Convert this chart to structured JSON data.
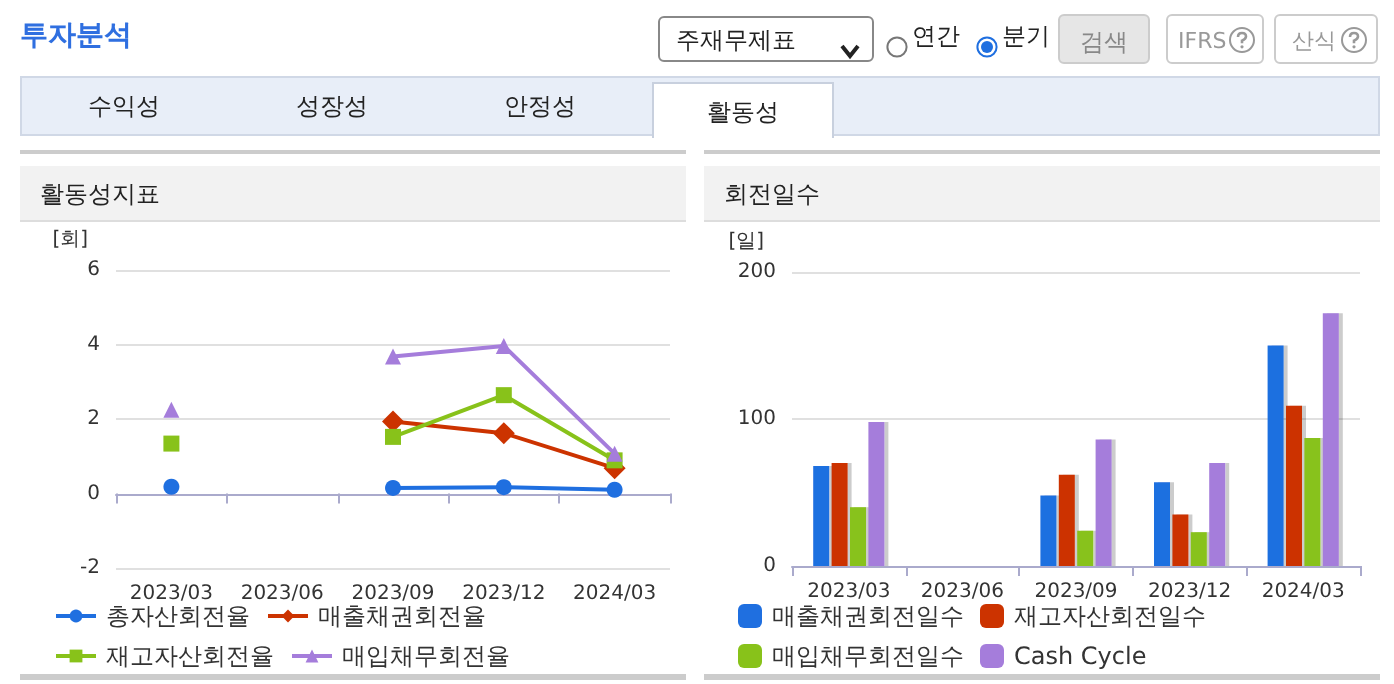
{
  "chart_data": [
    {
      "type": "line",
      "title": "활동성지표",
      "ylabel": "[회]",
      "annotations": [
        "투자분석",
        "주재무제표",
        "연간",
        "분기",
        "검색",
        "IFRS",
        "산식",
        "수익성",
        "성장성",
        "안정성",
        "활동성"
      ],
      "categories": [
        "2023/03",
        "2023/06",
        "2023/09",
        "2023/12",
        "2024/03"
      ],
      "series": [
        {
          "name": "총자산회전율",
          "color": "#1f6fe0",
          "marker": "circle",
          "values": [
            0.18,
            null,
            0.15,
            0.17,
            0.1
          ]
        },
        {
          "name": "매출채권회전율",
          "color": "#cc3300",
          "marker": "diamond",
          "values": [
            null,
            null,
            1.93,
            1.62,
            0.68
          ]
        },
        {
          "name": "재고자산회전율",
          "color": "#88c21a",
          "marker": "square",
          "values": [
            1.34,
            null,
            1.52,
            2.64,
            0.89
          ]
        },
        {
          "name": "매입채무회전율",
          "color": "#a57ddb",
          "marker": "triangle",
          "values": [
            2.25,
            null,
            3.68,
            3.96,
            1.07
          ]
        }
      ],
      "ylim": [
        -2,
        6
      ],
      "yticks": [
        -2,
        0,
        2,
        4,
        6
      ],
      "grid": "y",
      "legend": "bottom"
    },
    {
      "type": "bar",
      "title": "회전일수",
      "ylabel": "[일]",
      "categories": [
        "2023/03",
        "2023/06",
        "2023/09",
        "2023/12",
        "2024/03"
      ],
      "series": [
        {
          "name": "매출채권회전일수",
          "color": "#1f6fe0",
          "values": [
            68,
            null,
            48,
            57,
            150
          ]
        },
        {
          "name": "재고자산회전일수",
          "color": "#cc3300",
          "values": [
            70,
            null,
            62,
            35,
            109
          ]
        },
        {
          "name": "매입채무회전일수",
          "color": "#88c21a",
          "values": [
            40,
            null,
            24,
            23,
            87
          ]
        },
        {
          "name": "Cash Cycle",
          "color": "#a57ddb",
          "values": [
            98,
            null,
            86,
            70,
            172
          ]
        }
      ],
      "ylim": [
        0,
        200
      ],
      "yticks": [
        0,
        100,
        200
      ],
      "grid": "y",
      "legend": "bottom"
    }
  ]
}
